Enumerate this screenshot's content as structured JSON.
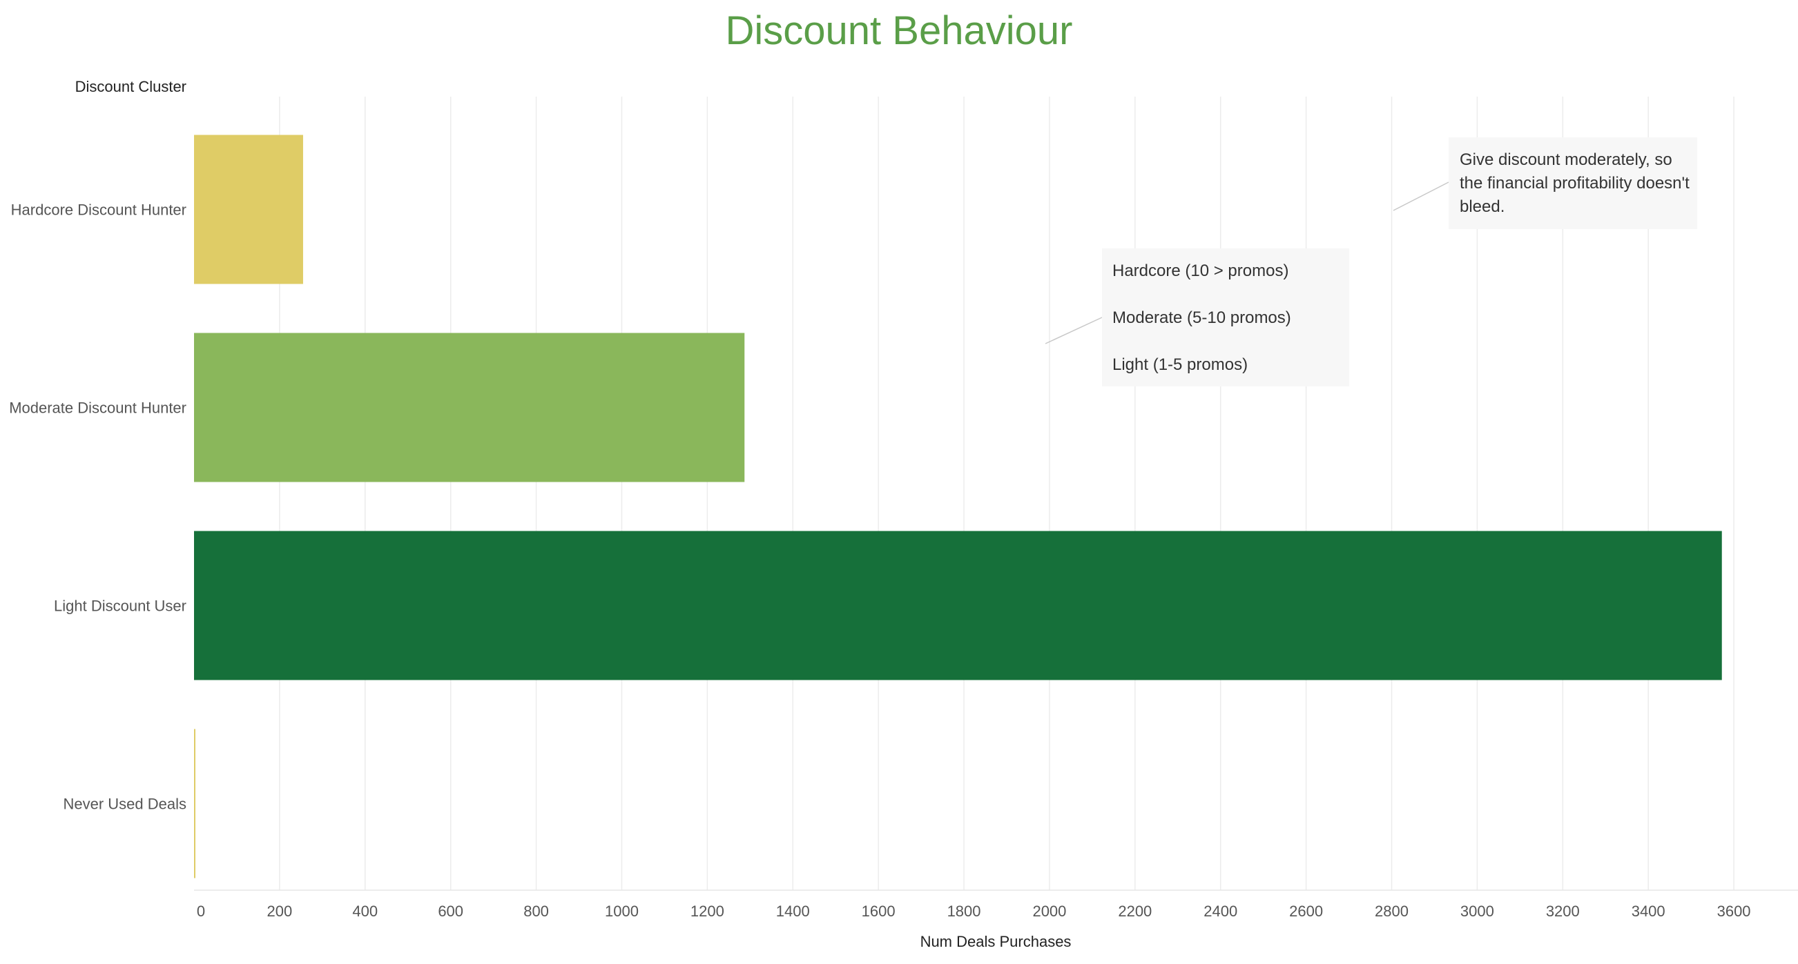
{
  "chart_data": {
    "type": "bar",
    "orientation": "horizontal",
    "title": "Discount Behaviour",
    "ylabel": "Discount Cluster",
    "xlabel": "Num Deals Purchases",
    "categories": [
      "Hardcore Discount Hunter",
      "Moderate Discount Hunter",
      "Light Discount User",
      "Never Used Deals"
    ],
    "values": [
      255,
      1287,
      3572,
      3
    ],
    "colors": [
      "#dfcc66",
      "#8ab75b",
      "#16703a",
      "#dfcc66"
    ],
    "xlim": [
      0,
      3750
    ],
    "xticks": [
      0,
      200,
      400,
      600,
      800,
      1000,
      1200,
      1400,
      1600,
      1800,
      2000,
      2200,
      2400,
      2600,
      2800,
      3000,
      3200,
      3400,
      3600
    ],
    "grid": true,
    "annotations": [
      {
        "lines": [
          "Hardcore (10 > promos)",
          "",
          "Moderate (5-10 promos)",
          "",
          "Light (1-5 promos)"
        ]
      },
      {
        "lines": [
          "Give discount moderately, so",
          "the financial profitability doesn't",
          "bleed."
        ]
      }
    ]
  }
}
